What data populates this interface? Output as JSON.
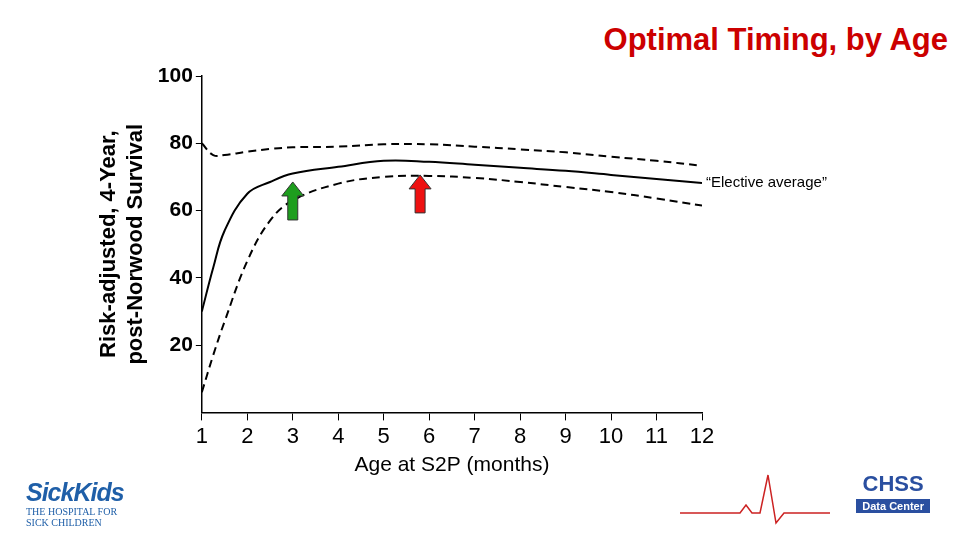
{
  "chart_data": {
    "type": "line",
    "title": "Optimal Timing, by Age",
    "x_label": "Age at S2P (months)",
    "y_label": [
      "Risk-adjusted, 4-Year,",
      "post-Norwood Survival"
    ],
    "x": [
      1,
      1.25,
      1.5,
      2,
      2.5,
      3,
      4,
      5,
      6,
      7,
      8,
      9,
      10,
      11,
      12
    ],
    "series": [
      {
        "color": "#000000",
        "line_style": "solid",
        "values": [
          30,
          43,
          54,
          65,
          68.5,
          71,
          73,
          74.8,
          74.5,
          73.6,
          72.7,
          71.8,
          70.6,
          69.4,
          68.2
        ]
      },
      {
        "color": "#000000",
        "line_style": "dashed",
        "values": [
          80,
          76.5,
          76.5,
          77.5,
          78.3,
          78.8,
          79,
          79.7,
          79.7,
          79,
          78.2,
          77.3,
          76,
          74.8,
          73.3
        ]
      },
      {
        "color": "#000000",
        "line_style": "dashed",
        "values": [
          6,
          17,
          27,
          45,
          57,
          63,
          68,
          70,
          70.3,
          69.7,
          68.5,
          67,
          65.5,
          63.6,
          61.5
        ]
      }
    ],
    "xlim": [
      1,
      12
    ],
    "xticks": [
      1,
      2,
      3,
      4,
      5,
      6,
      7,
      8,
      9,
      10,
      11,
      12
    ],
    "ylim": [
      0,
      100
    ],
    "yticks": [
      20,
      40,
      60,
      80,
      100
    ],
    "grid": false,
    "annotations": [
      {
        "text": "“Elective average”",
        "x": 12,
        "y": 68.2
      }
    ],
    "arrows": [
      {
        "x": 3,
        "y": 68.5,
        "color": "#1e9e1e"
      },
      {
        "x": 5.8,
        "y": 70.6,
        "color": "#ee1111"
      }
    ]
  },
  "logos": {
    "left": [
      "SickKids",
      "THE HOSPITAL FOR",
      "SICK CHILDREN"
    ],
    "right": [
      "CHSS",
      "Data Center"
    ]
  }
}
